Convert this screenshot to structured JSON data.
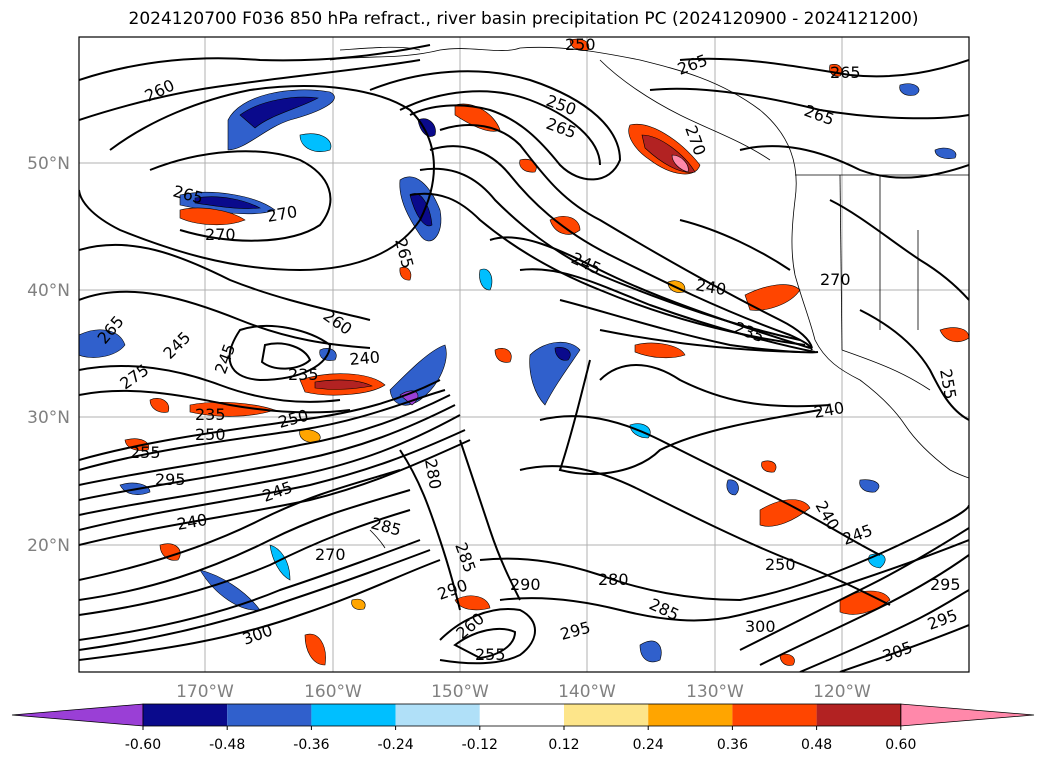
{
  "title": "2024120700 F036 850 hPa refract., river basin precipitation PC (2024120900 - 2024121200)",
  "map": {
    "lat_labels": [
      "50°N",
      "40°N",
      "30°N",
      "20°N"
    ],
    "lon_labels": [
      "170°W",
      "160°W",
      "150°W",
      "140°W",
      "130°W",
      "120°W"
    ],
    "contour_labels": [
      "260",
      "265",
      "270",
      "265",
      "270",
      "265",
      "250",
      "245",
      "240",
      "235",
      "260",
      "240",
      "235",
      "250",
      "245",
      "240",
      "275",
      "265",
      "245",
      "235",
      "250",
      "255",
      "295",
      "245",
      "240",
      "285",
      "290",
      "280",
      "270",
      "285",
      "280",
      "290",
      "295",
      "285",
      "260",
      "255",
      "300",
      "295",
      "265",
      "270",
      "240",
      "250",
      "300",
      "305",
      "295",
      "265",
      "265",
      "255",
      "250",
      "270",
      "245"
    ]
  },
  "colorbar": {
    "ticks": [
      "-0.60",
      "-0.48",
      "-0.36",
      "-0.24",
      "-0.12",
      "0.12",
      "0.24",
      "0.36",
      "0.48",
      "0.60"
    ],
    "colors": [
      "#9a3fd6",
      "#0a0a8c",
      "#3060cc",
      "#00bfff",
      "#b0e0f8",
      "#ffffff",
      "#fde58a",
      "#ffa500",
      "#ff4500",
      "#b22222",
      "#ff88aa"
    ]
  }
}
